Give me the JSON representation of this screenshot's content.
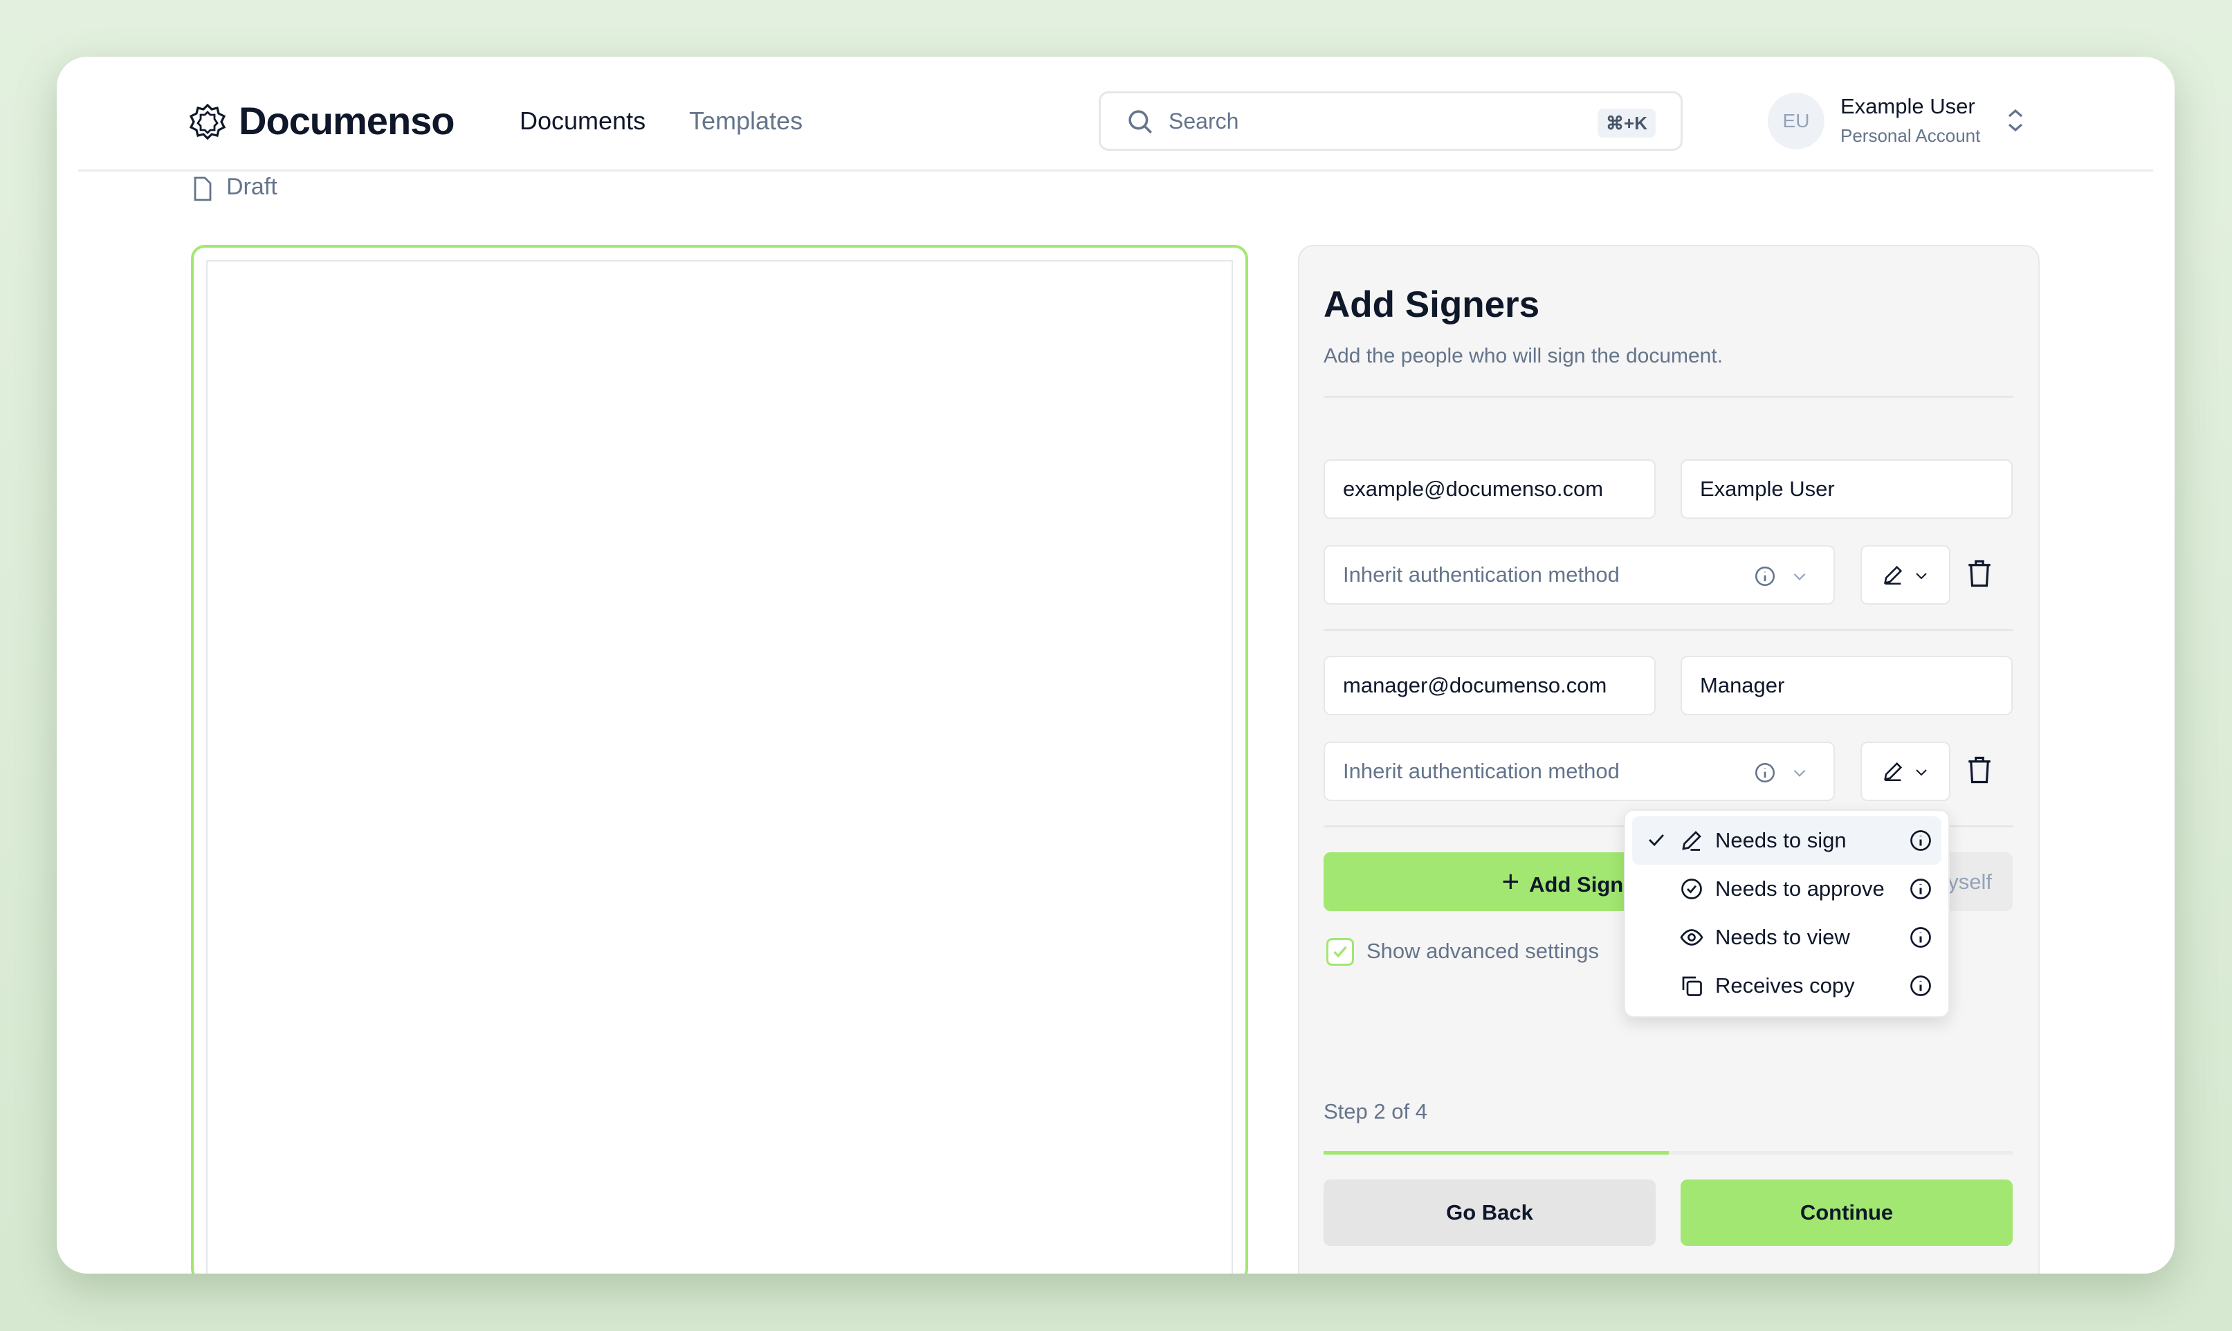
{
  "header": {
    "brand": "Documenso",
    "nav": [
      "Documents",
      "Templates"
    ],
    "search_placeholder": "Search",
    "shortcut": "⌘+K",
    "user": {
      "initials": "EU",
      "name": "Example User",
      "account": "Personal Account"
    }
  },
  "breadcrumb": {
    "status": "Draft"
  },
  "panel": {
    "title": "Add Signers",
    "subtitle": "Add the people who will sign the document.",
    "signers": [
      {
        "email": "example@documenso.com",
        "name": "Example User",
        "auth": "Inherit authentication method"
      },
      {
        "email": "manager@documenso.com",
        "name": "Manager",
        "auth": "Inherit authentication method"
      }
    ],
    "add_signer": "Add Signer",
    "add_myself": "Add myself",
    "advanced": "Show advanced settings",
    "advanced_checked": true,
    "step": "Step 2 of 4",
    "progress": 0.5,
    "go_back": "Go Back",
    "continue": "Continue"
  },
  "role_menu": {
    "items": [
      "Needs to sign",
      "Needs to approve",
      "Needs to view",
      "Receives copy"
    ],
    "selected": "Needs to sign"
  },
  "colors": {
    "accent": "#a2e771",
    "text": "#0f172a",
    "muted": "#64748b"
  }
}
